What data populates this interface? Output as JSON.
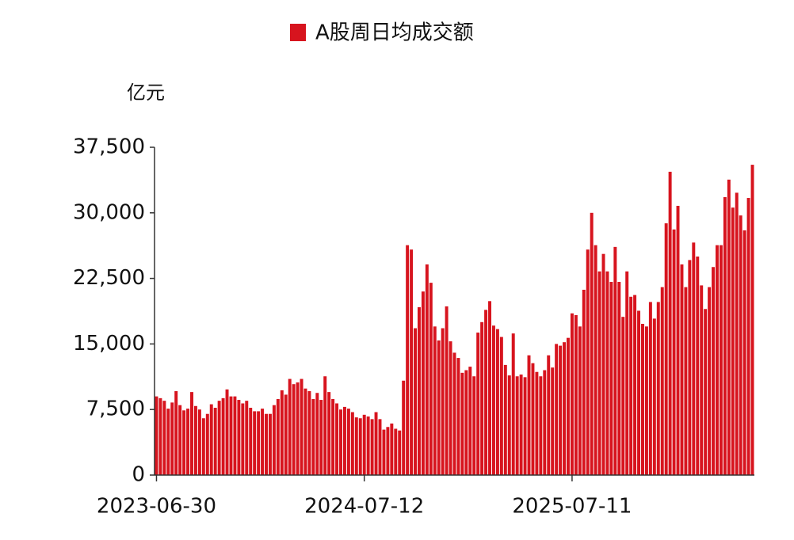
{
  "chart_data": {
    "type": "bar",
    "unit_label": "亿元",
    "categories": [
      "2023-06-30",
      null,
      null,
      null,
      null,
      null,
      null,
      null,
      null,
      null,
      null,
      null,
      null,
      null,
      null,
      null,
      null,
      null,
      null,
      null,
      null,
      null,
      null,
      null,
      null,
      null,
      null,
      null,
      null,
      null,
      null,
      null,
      null,
      null,
      null,
      null,
      null,
      null,
      null,
      null,
      null,
      null,
      null,
      null,
      null,
      null,
      null,
      null,
      null,
      null,
      null,
      null,
      null,
      "2024-07-12",
      null,
      null,
      null,
      null,
      null,
      null,
      null,
      null,
      null,
      null,
      null,
      null,
      null,
      null,
      null,
      null,
      null,
      null,
      null,
      null,
      null,
      null,
      null,
      null,
      null,
      null,
      null,
      null,
      null,
      null,
      null,
      null,
      null,
      null,
      null,
      null,
      null,
      null,
      null,
      null,
      null,
      null,
      null,
      null,
      null,
      null,
      null,
      null,
      null,
      null,
      null,
      null,
      "2025-07-11",
      null,
      null,
      null,
      null,
      null,
      null,
      null,
      null,
      null,
      null,
      null,
      null,
      null,
      null,
      null,
      null,
      null,
      null,
      null,
      null,
      null,
      null,
      null,
      null,
      null,
      null,
      null,
      null,
      null,
      null,
      null,
      null,
      null,
      null,
      null,
      null,
      null,
      null,
      null,
      null,
      null,
      null,
      null,
      null,
      null,
      null
    ],
    "series": [
      {
        "name": "A股周日均成交额",
        "color": "#d7141e",
        "values": [
          9000,
          8800,
          8500,
          7600,
          8300,
          9600,
          8000,
          7400,
          7600,
          9500,
          7900,
          7500,
          6500,
          7000,
          8100,
          7700,
          8500,
          8800,
          9800,
          9000,
          9000,
          8600,
          8200,
          8500,
          7700,
          7300,
          7300,
          7600,
          7000,
          7000,
          8000,
          8700,
          9700,
          9200,
          11000,
          10400,
          10600,
          11000,
          9900,
          9600,
          8700,
          9400,
          8600,
          11300,
          9500,
          8700,
          8200,
          7500,
          7800,
          7600,
          7200,
          6600,
          6500,
          6900,
          6700,
          6400,
          7200,
          6400,
          5200,
          5500,
          5900,
          5300,
          5100,
          10800,
          26300,
          25800,
          16800,
          19200,
          21000,
          24100,
          22000,
          17000,
          15400,
          16800,
          19300,
          15300,
          14000,
          13400,
          11700,
          12000,
          12400,
          11300,
          16300,
          17500,
          18900,
          19900,
          17100,
          16700,
          15800,
          12600,
          11400,
          16200,
          11300,
          11500,
          11200,
          13700,
          12800,
          11800,
          11300,
          12000,
          13700,
          12300,
          15000,
          14800,
          15200,
          15700,
          18500,
          18300,
          17000,
          21200,
          25800,
          30000,
          26300,
          23300,
          25300,
          23300,
          22100,
          26100,
          22100,
          18100,
          23300,
          20400,
          20600,
          18800,
          17300,
          17000,
          19800,
          17900,
          19800,
          21500,
          28800,
          34700,
          28100,
          30800,
          24100,
          21500,
          24600,
          26600,
          25000,
          21700,
          19000,
          21500,
          23800,
          26300,
          26300,
          31800,
          33800,
          30600,
          32300,
          29700,
          28000,
          31700,
          35500
        ]
      }
    ],
    "ylim": [
      0,
      37500
    ],
    "yticks": [
      0,
      {
        "value": 7500,
        "label": "7,500"
      },
      {
        "value": 15000,
        "label": "15,000"
      },
      {
        "value": 22500,
        "label": "22,500"
      },
      {
        "value": 30000,
        "label": "30,000"
      },
      {
        "value": 37500,
        "label": "37,500"
      }
    ],
    "legend": "top"
  }
}
